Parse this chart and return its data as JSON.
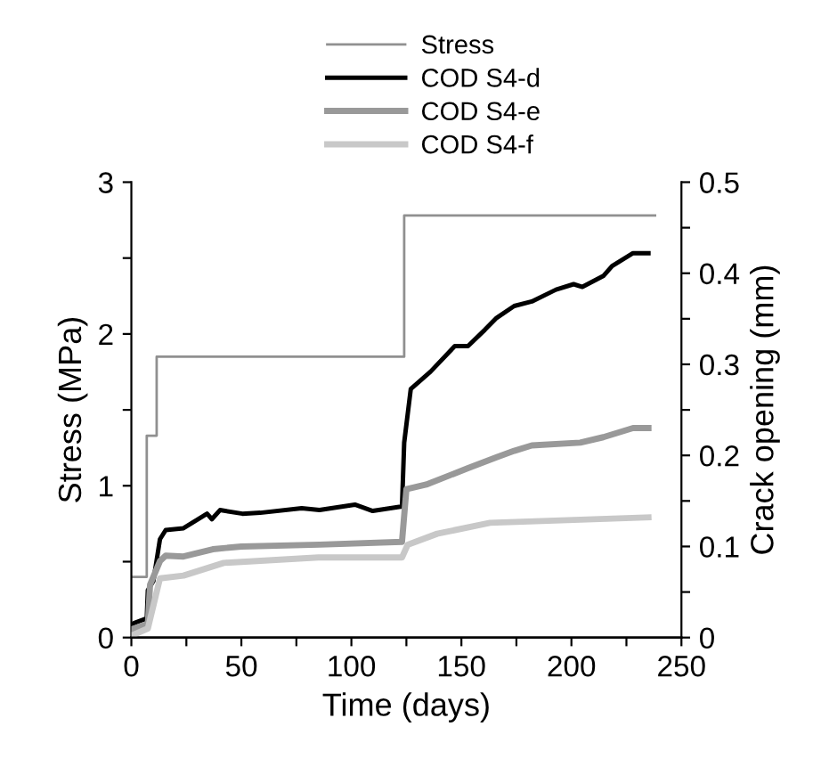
{
  "chart_data": {
    "type": "line",
    "xlabel": "Time (days)",
    "ylabel": "Stress (MPa)",
    "y2label": "Crack opening (mm)",
    "xlim": [
      0,
      250
    ],
    "xticks": [
      0,
      {
        "value": 25,
        "label": null
      },
      50,
      {
        "value": 75,
        "label": null
      },
      100,
      {
        "value": 125,
        "label": null
      },
      150,
      {
        "value": 175,
        "label": null
      },
      200,
      {
        "value": 225,
        "label": null
      },
      250
    ],
    "ylim": [
      0,
      3
    ],
    "yticks": [
      0,
      {
        "value": 0.5,
        "label": null
      },
      1,
      {
        "value": 1.5,
        "label": null
      },
      2,
      {
        "value": 2.5,
        "label": null
      },
      3
    ],
    "y2lim": [
      0,
      0.5
    ],
    "y2ticks": [
      0,
      {
        "value": 0.05,
        "label": null
      },
      0.1,
      {
        "value": 0.15,
        "label": null
      },
      0.2,
      {
        "value": 0.25,
        "label": null
      },
      0.3,
      {
        "value": 0.35,
        "label": null
      },
      0.4,
      {
        "value": 0.45,
        "label": null
      },
      0.5
    ],
    "grid": false,
    "legend": "top",
    "marker": "none",
    "line_style": "solid",
    "series": [
      {
        "name": "Stress",
        "color": "#909090",
        "type": "step",
        "x": [
          0,
          7,
          11.5,
          124,
          238
        ],
        "values": [
          0.4,
          1.33,
          1.85,
          2.78,
          2.78
        ]
      },
      {
        "name": "COD S4-d",
        "color": "#000000",
        "axis": "y2",
        "x": [
          0,
          1.3,
          7,
          7.5,
          10,
          13,
          15.6,
          23.7,
          34.4,
          36.6,
          40.3,
          50.5,
          58.6,
          77.4,
          85.5,
          101.6,
          109.7,
          123,
          124,
          127,
          136,
          147,
          153,
          160.7,
          166,
          174,
          182,
          193,
          201,
          205,
          214.5,
          218.5,
          228,
          235
        ],
        "values": [
          0.012,
          0.016,
          0.021,
          0.052,
          0.062,
          0.108,
          0.118,
          0.12,
          0.136,
          0.13,
          0.14,
          0.136,
          0.137,
          0.142,
          0.14,
          0.146,
          0.139,
          0.144,
          0.214,
          0.273,
          0.292,
          0.32,
          0.32,
          0.338,
          0.351,
          0.364,
          0.369,
          0.382,
          0.388,
          0.385,
          0.397,
          0.408,
          0.422,
          0.422
        ]
      },
      {
        "name": "COD S4-e",
        "color": "#999999",
        "axis": "y2",
        "x": [
          0,
          7.5,
          8.5,
          13,
          15.6,
          23.7,
          37,
          50,
          85.5,
          123,
          125,
          134,
          153,
          166,
          174,
          182,
          204,
          214.5,
          228,
          235
        ],
        "values": [
          0.009,
          0.015,
          0.058,
          0.084,
          0.09,
          0.089,
          0.097,
          0.1,
          0.102,
          0.105,
          0.163,
          0.168,
          0.186,
          0.198,
          0.205,
          0.211,
          0.214,
          0.22,
          0.23,
          0.23
        ]
      },
      {
        "name": "COD S4-f",
        "color": "#c8c8c8",
        "axis": "y2",
        "x": [
          0,
          7.5,
          13,
          23.7,
          42,
          85,
          123,
          125.6,
          139,
          163,
          235
        ],
        "values": [
          0.002,
          0.01,
          0.065,
          0.068,
          0.082,
          0.088,
          0.088,
          0.102,
          0.114,
          0.126,
          0.132
        ]
      }
    ]
  }
}
